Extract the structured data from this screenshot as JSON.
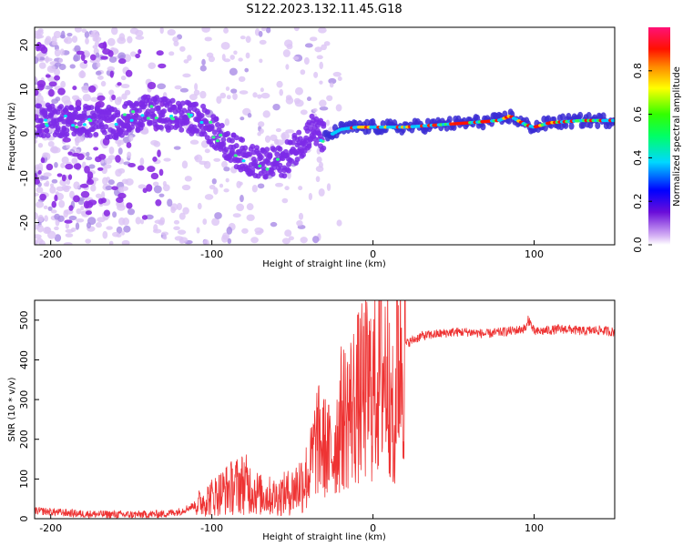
{
  "title": "S122.2023.132.11.45.G18",
  "chart_data": [
    {
      "type": "heatmap",
      "xlabel": "Height of straight line (km)",
      "ylabel": "Frequency (Hz)",
      "xlim": [
        -210,
        150
      ],
      "ylim": [
        -25,
        24
      ],
      "xticks": [
        -200,
        -100,
        0,
        100
      ],
      "yticks": [
        -20,
        -10,
        0,
        10,
        20
      ],
      "colorbar": {
        "label": "Normalized spectral amplitude",
        "range": [
          0,
          1
        ],
        "ticks": [
          "0.0",
          "0.2",
          "0.4",
          "0.6",
          "0.8"
        ]
      },
      "ridge": [
        {
          "x": -205,
          "y": 3
        },
        {
          "x": -180,
          "y": 3
        },
        {
          "x": -160,
          "y": 2.5
        },
        {
          "x": -140,
          "y": 5
        },
        {
          "x": -120,
          "y": 4
        },
        {
          "x": -105,
          "y": 3
        },
        {
          "x": -95,
          "y": -1
        },
        {
          "x": -85,
          "y": -4
        },
        {
          "x": -75,
          "y": -6
        },
        {
          "x": -65,
          "y": -7
        },
        {
          "x": -55,
          "y": -6
        },
        {
          "x": -45,
          "y": -2
        },
        {
          "x": -38,
          "y": 1
        },
        {
          "x": -30,
          "y": -1
        },
        {
          "x": -20,
          "y": 1
        },
        {
          "x": -10,
          "y": 1.5
        },
        {
          "x": 0,
          "y": 1.5
        },
        {
          "x": 20,
          "y": 1.5
        },
        {
          "x": 40,
          "y": 2
        },
        {
          "x": 60,
          "y": 2.5
        },
        {
          "x": 78,
          "y": 3
        },
        {
          "x": 85,
          "y": 4
        },
        {
          "x": 95,
          "y": 2
        },
        {
          "x": 100,
          "y": 1.5
        },
        {
          "x": 110,
          "y": 2.5
        },
        {
          "x": 130,
          "y": 3
        },
        {
          "x": 150,
          "y": 3
        }
      ]
    },
    {
      "type": "line",
      "xlabel": "Height of straight line (km)",
      "ylabel": "SNR (10 * v/v)",
      "xlim": [
        -210,
        150
      ],
      "ylim": [
        0,
        550
      ],
      "xticks": [
        -200,
        -100,
        0,
        100
      ],
      "yticks": [
        0,
        100,
        200,
        300,
        400,
        500
      ],
      "series": [
        {
          "color": "#ee3333",
          "x": [
            -210,
            -180,
            -150,
            -130,
            -120,
            -110,
            -100,
            -90,
            -80,
            -70,
            -60,
            -50,
            -40,
            -35,
            -30,
            -25,
            -20,
            -15,
            -10,
            -5,
            0,
            5,
            10,
            13,
            15,
            20,
            25,
            30,
            40,
            50,
            60,
            70,
            80,
            90,
            95,
            97,
            100,
            110,
            120,
            130,
            140,
            150
          ],
          "values": [
            20,
            12,
            10,
            12,
            18,
            35,
            55,
            75,
            90,
            60,
            55,
            70,
            110,
            200,
            180,
            160,
            250,
            270,
            300,
            320,
            330,
            370,
            390,
            360,
            420,
            440,
            450,
            460,
            465,
            470,
            470,
            465,
            470,
            475,
            480,
            500,
            470,
            475,
            478,
            472,
            475,
            470
          ]
        }
      ]
    }
  ]
}
